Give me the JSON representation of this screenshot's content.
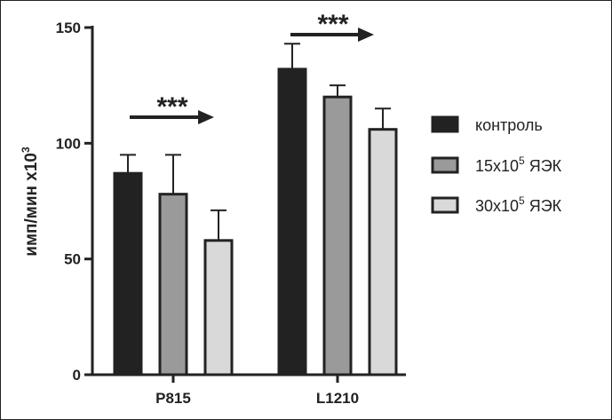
{
  "chart_data": {
    "type": "bar",
    "categories": [
      "P815",
      "L1210"
    ],
    "ylabel": "имп/мин x10",
    "ylabel_sup": "3",
    "ylim": [
      0,
      150
    ],
    "yticks": [
      0,
      50,
      100,
      150
    ],
    "series": [
      {
        "name": "контроль",
        "name_sup": "",
        "name_suffix": "",
        "color": "#222222",
        "values": [
          87,
          132
        ],
        "errors": [
          8,
          11
        ]
      },
      {
        "name": "15x10",
        "name_sup": "5",
        "name_suffix": " ЯЭК",
        "color": "#9a9a9a",
        "values": [
          78,
          120
        ],
        "errors": [
          17,
          5
        ]
      },
      {
        "name": "30x10",
        "name_sup": "5",
        "name_suffix": " ЯЭК",
        "color": "#d9d9d9",
        "values": [
          58,
          106
        ],
        "errors": [
          13,
          9
        ]
      }
    ],
    "annotations": [
      {
        "category": "P815",
        "text": "***"
      },
      {
        "category": "L1210",
        "text": "***"
      }
    ],
    "legend_position": "right",
    "grid": false
  }
}
